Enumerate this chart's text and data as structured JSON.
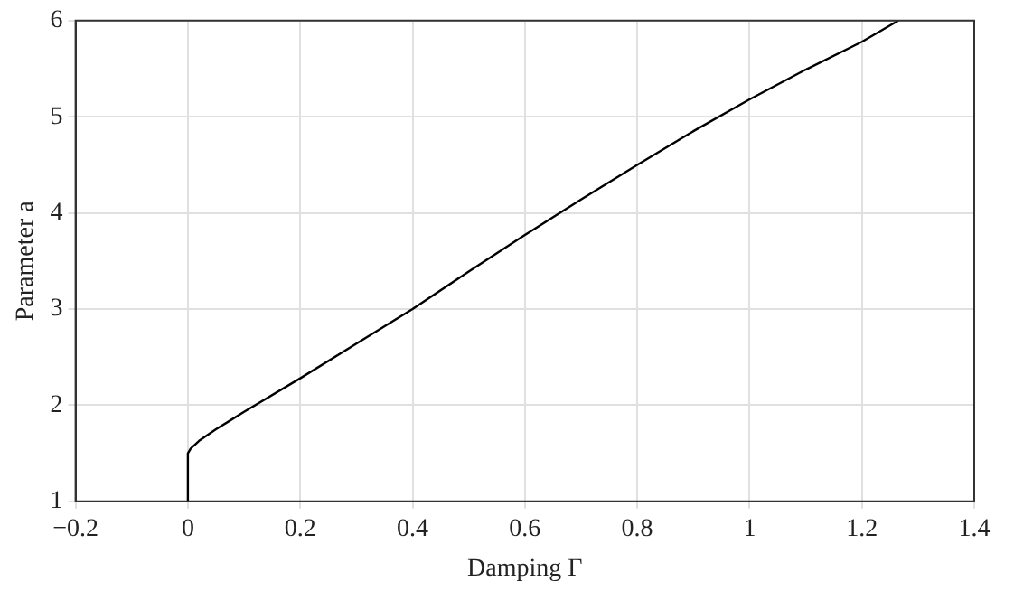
{
  "chart_data": {
    "type": "line",
    "xlabel": "Damping Γ",
    "ylabel": "Parameter a",
    "series": [
      {
        "color": "#000000",
        "x": [
          0,
          0,
          0.005,
          0.02,
          0.05,
          0.1,
          0.2,
          0.3,
          0.4,
          0.5,
          0.6,
          0.7,
          0.8,
          0.9,
          1.0,
          1.1,
          1.2,
          1.265
        ],
        "values": [
          1,
          1.5,
          1.55,
          1.63,
          1.75,
          1.93,
          2.28,
          2.64,
          3.0,
          3.39,
          3.77,
          4.14,
          4.5,
          4.85,
          5.18,
          5.49,
          5.78,
          6
        ]
      }
    ],
    "xlim": [
      -0.2,
      1.4
    ],
    "xticks": [
      {
        "value": -0.2,
        "label": "−0.2"
      },
      0,
      0.2,
      0.4,
      0.6,
      0.8,
      1,
      1.2,
      1.4
    ],
    "ylim": [
      1,
      6
    ],
    "yticks": [
      1,
      2,
      3,
      4,
      5,
      6
    ],
    "grid": true,
    "legend": false,
    "marker": "none",
    "line_style": "solid"
  }
}
